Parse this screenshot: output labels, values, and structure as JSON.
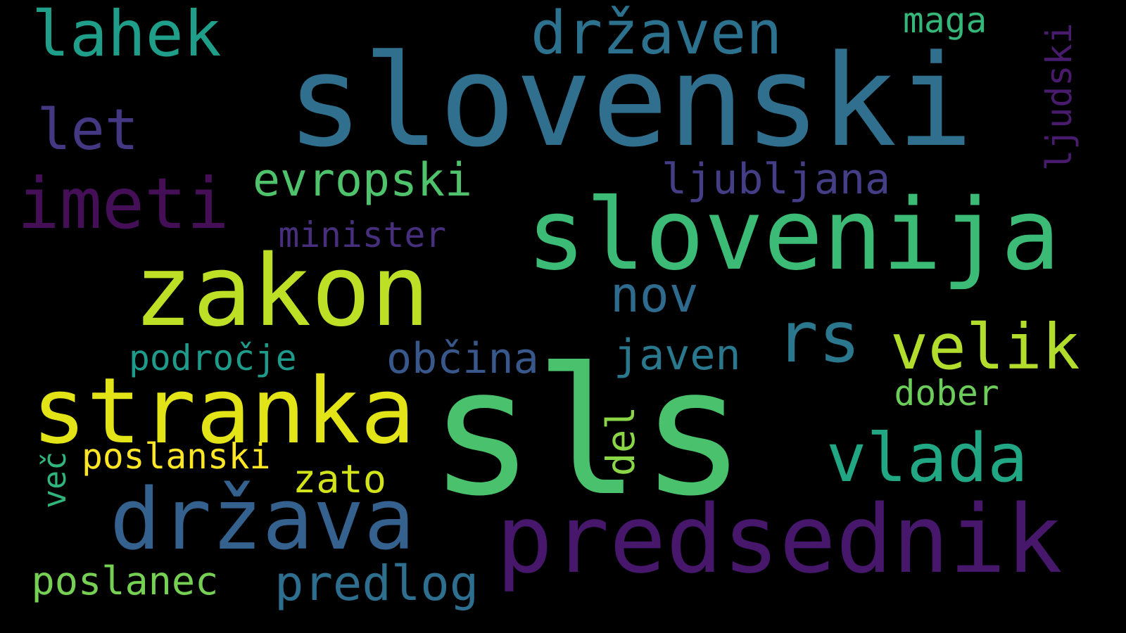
{
  "background_color": "#000000",
  "colormap": "viridis",
  "words": [
    {
      "text": "slovenski",
      "color": "#30708e"
    },
    {
      "text": "sls",
      "color": "#4ac16d"
    },
    {
      "text": "zakon",
      "color": "#bddf26"
    },
    {
      "text": "slovenija",
      "color": "#3bbb75"
    },
    {
      "text": "predsednik",
      "color": "#46176a"
    },
    {
      "text": "država",
      "color": "#34618d"
    },
    {
      "text": "stranka",
      "color": "#e3e418"
    },
    {
      "text": "imeti",
      "color": "#440f56"
    },
    {
      "text": "lahek",
      "color": "#1f9e89"
    },
    {
      "text": "državen",
      "color": "#2c728e"
    },
    {
      "text": "rs",
      "color": "#2a778e"
    },
    {
      "text": "vlada",
      "color": "#22a785"
    },
    {
      "text": "velik",
      "color": "#b2dd2c"
    },
    {
      "text": "let",
      "color": "#453882"
    },
    {
      "text": "evropski",
      "color": "#4ec36b"
    },
    {
      "text": "nov",
      "color": "#2f6b8e"
    },
    {
      "text": "poslanec",
      "color": "#75d054"
    },
    {
      "text": "predlog",
      "color": "#2e6e8e"
    },
    {
      "text": "občina",
      "color": "#38588c"
    },
    {
      "text": "javen",
      "color": "#2a788e"
    },
    {
      "text": "področje",
      "color": "#1e9b8a"
    },
    {
      "text": "ljubljana",
      "color": "#433e85"
    },
    {
      "text": "minister",
      "color": "#472f7d"
    },
    {
      "text": "maga",
      "color": "#35b779"
    },
    {
      "text": "dober",
      "color": "#6ccd5a"
    },
    {
      "text": "zato",
      "color": "#d2e21b"
    },
    {
      "text": "poslanski",
      "color": "#fde725"
    },
    {
      "text": "ljudski",
      "color": "#481b6d"
    },
    {
      "text": "del",
      "color": "#8bd646"
    },
    {
      "text": "več",
      "color": "#2fb47c"
    }
  ]
}
